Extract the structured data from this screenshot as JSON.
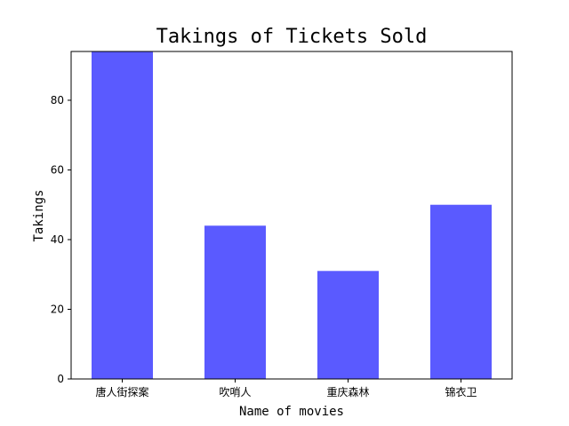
{
  "chart_data": {
    "type": "bar",
    "title": "Takings of Tickets Sold",
    "xlabel": "Name of movies",
    "ylabel": "Takings",
    "categories": [
      "唐人街探案",
      "吹哨人",
      "重庆森林",
      "锦衣卫"
    ],
    "values": [
      94,
      44,
      31,
      50
    ],
    "ylim": [
      0,
      94
    ],
    "yticks": [
      0,
      20,
      40,
      60,
      80
    ],
    "bar_color": "#5a5aff",
    "grid": false,
    "legend": "none"
  }
}
